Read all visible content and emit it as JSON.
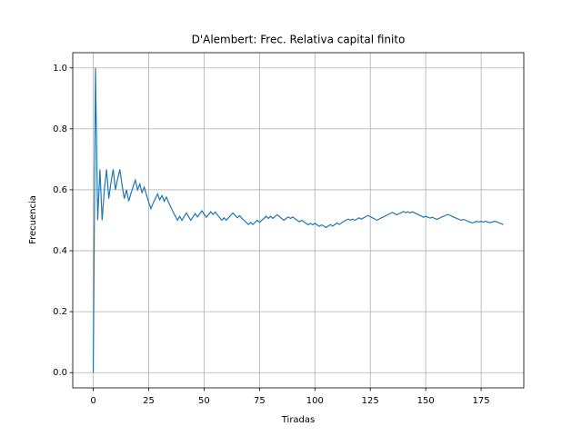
{
  "chart_data": {
    "type": "line",
    "title": "D'Alembert: Frec. Relativa capital finito",
    "xlabel": "Tiradas",
    "ylabel": "Frecuencia",
    "x": [
      0,
      1,
      2,
      3,
      4,
      5,
      6,
      7,
      8,
      9,
      10,
      11,
      12,
      13,
      14,
      15,
      16,
      17,
      18,
      19,
      20,
      21,
      22,
      23,
      24,
      25,
      26,
      27,
      28,
      29,
      30,
      31,
      32,
      33,
      34,
      35,
      36,
      37,
      38,
      39,
      40,
      41,
      42,
      43,
      44,
      45,
      46,
      47,
      48,
      49,
      50,
      51,
      52,
      53,
      54,
      55,
      56,
      57,
      58,
      59,
      60,
      61,
      62,
      63,
      64,
      65,
      66,
      67,
      68,
      69,
      70,
      71,
      72,
      73,
      74,
      75,
      76,
      77,
      78,
      79,
      80,
      81,
      82,
      83,
      84,
      85,
      86,
      87,
      88,
      89,
      90,
      91,
      92,
      93,
      94,
      95,
      96,
      97,
      98,
      99,
      100,
      101,
      102,
      103,
      104,
      105,
      106,
      107,
      108,
      109,
      110,
      111,
      112,
      113,
      114,
      115,
      116,
      117,
      118,
      119,
      120,
      121,
      122,
      123,
      124,
      125,
      126,
      127,
      128,
      129,
      130,
      131,
      132,
      133,
      134,
      135,
      136,
      137,
      138,
      139,
      140,
      141,
      142,
      143,
      144,
      145,
      146,
      147,
      148,
      149,
      150,
      151,
      152,
      153,
      154,
      155,
      156,
      157,
      158,
      159,
      160,
      161,
      162,
      163,
      164,
      165,
      166,
      167,
      168,
      169,
      170,
      171,
      172,
      173,
      174,
      175,
      176,
      177,
      178,
      179,
      180,
      181,
      182,
      183,
      184,
      185
    ],
    "series": [
      {
        "name": "Frecuencia",
        "color": "#1f77b4",
        "values": [
          0,
          1.0,
          0.5,
          0.667,
          0.5,
          0.6,
          0.667,
          0.571,
          0.625,
          0.667,
          0.6,
          0.636,
          0.667,
          0.615,
          0.571,
          0.6,
          0.5625,
          0.588,
          0.611,
          0.632,
          0.6,
          0.619,
          0.591,
          0.609,
          0.583,
          0.56,
          0.538,
          0.556,
          0.571,
          0.586,
          0.567,
          0.581,
          0.5625,
          0.576,
          0.559,
          0.543,
          0.528,
          0.514,
          0.5,
          0.513,
          0.5,
          0.512,
          0.524,
          0.512,
          0.5,
          0.511,
          0.522,
          0.511,
          0.521,
          0.531,
          0.52,
          0.51,
          0.519,
          0.528,
          0.519,
          0.527,
          0.518,
          0.509,
          0.5,
          0.508,
          0.5,
          0.508,
          0.516,
          0.524,
          0.516,
          0.508,
          0.515,
          0.507,
          0.5,
          0.493,
          0.486,
          0.493,
          0.486,
          0.493,
          0.5,
          0.493,
          0.5,
          0.506,
          0.513,
          0.506,
          0.513,
          0.506,
          0.512,
          0.518,
          0.512,
          0.506,
          0.5,
          0.506,
          0.511,
          0.506,
          0.511,
          0.505,
          0.5,
          0.495,
          0.5,
          0.495,
          0.49,
          0.485,
          0.49,
          0.485,
          0.49,
          0.485,
          0.48,
          0.485,
          0.481,
          0.476,
          0.481,
          0.486,
          0.481,
          0.486,
          0.491,
          0.486,
          0.491,
          0.496,
          0.5,
          0.504,
          0.5,
          0.504,
          0.5,
          0.504,
          0.508,
          0.504,
          0.508,
          0.512,
          0.516,
          0.512,
          0.508,
          0.504,
          0.5,
          0.504,
          0.508,
          0.511,
          0.515,
          0.519,
          0.522,
          0.526,
          0.522,
          0.518,
          0.522,
          0.525,
          0.529,
          0.525,
          0.528,
          0.524,
          0.528,
          0.524,
          0.521,
          0.517,
          0.514,
          0.51,
          0.513,
          0.51,
          0.507,
          0.51,
          0.506,
          0.503,
          0.506,
          0.51,
          0.513,
          0.516,
          0.519,
          0.516,
          0.512,
          0.509,
          0.506,
          0.503,
          0.5,
          0.503,
          0.5,
          0.497,
          0.494,
          0.491,
          0.494,
          0.497,
          0.494,
          0.497,
          0.494,
          0.497,
          0.494,
          0.492,
          0.494,
          0.497,
          0.495,
          0.492,
          0.489,
          0.486
        ]
      }
    ],
    "xlim": [
      -9.25,
      194.25
    ],
    "ylim": [
      -0.05,
      1.05
    ],
    "xticks": [
      0,
      25,
      50,
      75,
      100,
      125,
      150,
      175
    ],
    "yticks": [
      {
        "value": 0,
        "label": "0.0"
      },
      {
        "value": 0.2,
        "label": "0.2"
      },
      {
        "value": 0.4,
        "label": "0.4"
      },
      {
        "value": 0.6,
        "label": "0.6"
      },
      {
        "value": 0.8,
        "label": "0.8"
      },
      {
        "value": 1.0,
        "label": "1.0"
      }
    ],
    "grid": true
  }
}
